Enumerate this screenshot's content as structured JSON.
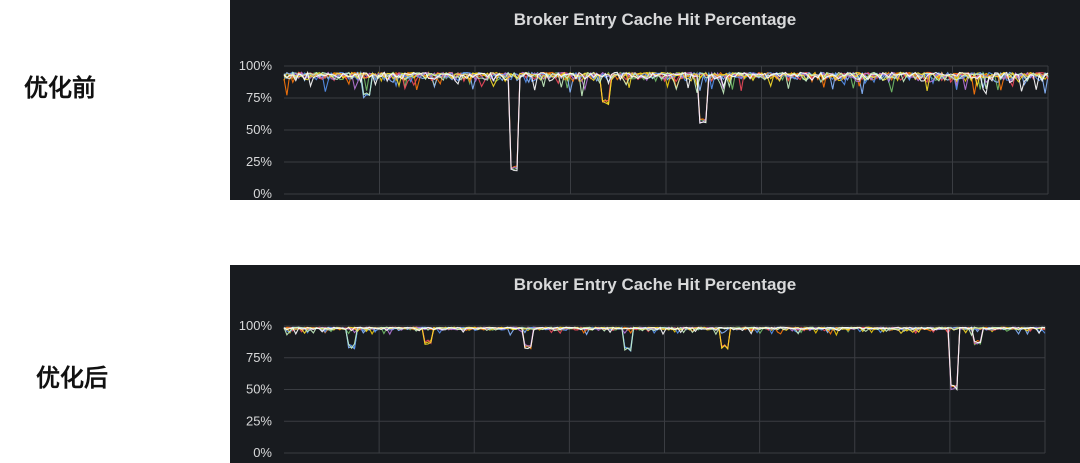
{
  "labels": {
    "before": "优化前",
    "after": "优化后"
  },
  "colors": {
    "panel_bg": "#181b1f",
    "grid": "#3a3d42",
    "text": "#d8d9da"
  },
  "chart_data": [
    {
      "type": "line",
      "title": "Broker Entry Cache Hit Percentage",
      "yticks": [
        "100%",
        "75%",
        "50%",
        "25%",
        "0%"
      ],
      "ylim": [
        0,
        100
      ],
      "grid": true,
      "series_colors": [
        "#73bf69",
        "#f2cc0c",
        "#8ab8ff",
        "#ff780a",
        "#f2495c",
        "#5794f2",
        "#b877d9",
        "#fade2a",
        "#c8f2c2",
        "#ffffff"
      ],
      "baseline": 95,
      "noise": 6,
      "dips": [
        {
          "pos": 0.3,
          "min": 18
        },
        {
          "pos": 0.11,
          "min": 75
        },
        {
          "pos": 0.42,
          "min": 70
        },
        {
          "pos": 0.55,
          "min": 55
        }
      ]
    },
    {
      "type": "line",
      "title": "Broker Entry Cache Hit Percentage",
      "yticks": [
        "100%",
        "75%",
        "50%",
        "25%",
        "0%"
      ],
      "ylim": [
        0,
        100
      ],
      "grid": true,
      "series_colors": [
        "#73bf69",
        "#f2cc0c",
        "#8ab8ff",
        "#ff780a",
        "#f2495c",
        "#5794f2",
        "#b877d9",
        "#fade2a",
        "#c8f2c2",
        "#ffffff"
      ],
      "baseline": 99,
      "noise": 2,
      "dips": [
        {
          "pos": 0.88,
          "min": 50
        },
        {
          "pos": 0.09,
          "min": 82
        },
        {
          "pos": 0.19,
          "min": 85
        },
        {
          "pos": 0.32,
          "min": 82
        },
        {
          "pos": 0.45,
          "min": 80
        },
        {
          "pos": 0.58,
          "min": 82
        },
        {
          "pos": 0.91,
          "min": 85
        }
      ]
    }
  ]
}
